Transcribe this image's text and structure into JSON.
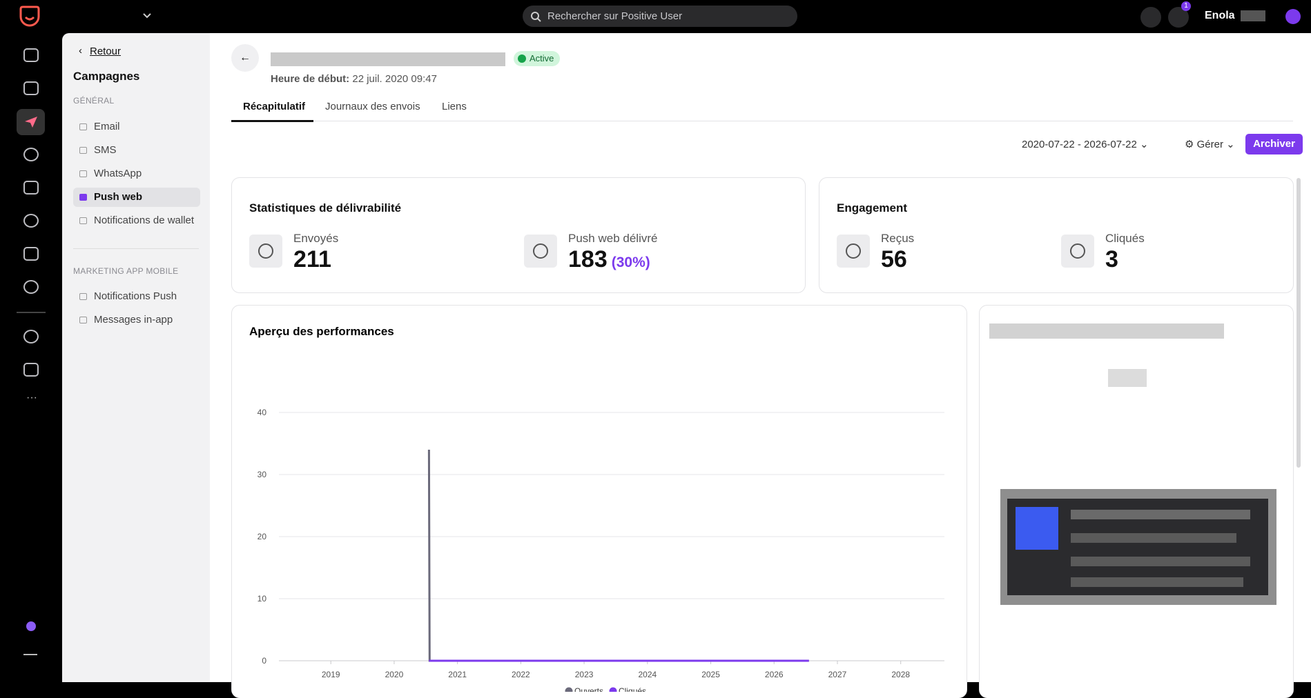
{
  "topbar": {
    "search": "Rechercher sur Positive User",
    "notifications": "1",
    "user": "Enola"
  },
  "sidebar": {
    "back": "Retour",
    "title": "Campagnes",
    "sections": [
      {
        "heading": "GÉNÉRAL",
        "items": [
          {
            "label": "Email"
          },
          {
            "label": "SMS"
          },
          {
            "label": "WhatsApp"
          },
          {
            "label": "Push web",
            "active": true
          },
          {
            "label": "Notifications de wallet"
          }
        ]
      },
      {
        "heading": "MARKETING APP MOBILE",
        "items": [
          {
            "label": "Notifications Push"
          },
          {
            "label": "Messages in-app"
          }
        ]
      }
    ]
  },
  "header": {
    "status": "Active",
    "start_label": "Heure de début:",
    "start_value": "22 juil. 2020 09:47"
  },
  "tabs": [
    {
      "label": "Récapitulatif",
      "active": true
    },
    {
      "label": "Journaux des envois"
    },
    {
      "label": "Liens"
    }
  ],
  "toolbar": {
    "date_range": "2020-07-22 - 2026-07-22",
    "manage": "Gérer",
    "archive": "Archiver"
  },
  "deliverability": {
    "title": "Statistiques de délivrabilité",
    "stats": [
      {
        "label": "Envoyés",
        "value": 211
      },
      {
        "label": "Push web délivré",
        "value": 183,
        "percent": "(30%)"
      }
    ]
  },
  "engagement": {
    "title": "Engagement",
    "stats": [
      {
        "label": "Reçus",
        "value": 56
      },
      {
        "label": "Cliqués",
        "value": 3
      }
    ]
  },
  "chart_data": {
    "type": "line",
    "title": "Aperçu des performances",
    "x": [
      2020.55,
      2020.56,
      2026.55
    ],
    "series": [
      {
        "name": "Ouverts",
        "color": "#6b6a7b",
        "values": [
          34,
          0,
          0
        ]
      },
      {
        "name": "Cliqués",
        "color": "#7c3aed",
        "values": [
          0,
          0,
          0
        ]
      }
    ],
    "xlim": [
      2018.18,
      2028.69
    ],
    "xticks": [
      2019,
      2020,
      2021,
      2022,
      2023,
      2024,
      2025,
      2026,
      2027,
      2028
    ],
    "ylim": [
      0,
      40
    ],
    "yticks": [
      0,
      10,
      20,
      30,
      40
    ],
    "grid": true,
    "legend": "bottom"
  }
}
